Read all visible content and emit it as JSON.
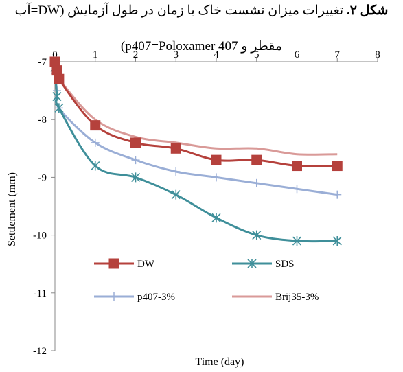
{
  "caption": {
    "label": "شکل ۲.",
    "line1": "تغییرات میزان نشست خاک با زمان در طول آزمایش (DW=آب",
    "line2": "مقطر و p407=Poloxamer 407)"
  },
  "chart_data": {
    "type": "line",
    "title": "",
    "xlabel": "Time (day)",
    "ylabel": "Settlement (mm)",
    "xlim": [
      0,
      8
    ],
    "ylim": [
      -12,
      -7
    ],
    "x_ticks": [
      "0",
      "1",
      "2",
      "3",
      "4",
      "5",
      "6",
      "7",
      "8"
    ],
    "y_ticks": [
      "-7",
      "-8",
      "-9",
      "-10",
      "-11",
      "-12"
    ],
    "grid": false,
    "legend_position": "inside-bottom",
    "series": [
      {
        "name": "DW",
        "color": "#b5413c",
        "marker": "square",
        "x": [
          0,
          0.05,
          0.1,
          1,
          2,
          3,
          4,
          5,
          6,
          7
        ],
        "y": [
          -7.0,
          -7.15,
          -7.3,
          -8.1,
          -8.4,
          -8.5,
          -8.7,
          -8.7,
          -8.8,
          -8.8
        ]
      },
      {
        "name": "SDS",
        "color": "#3f8f9a",
        "marker": "asterisk",
        "x": [
          0,
          0.05,
          0.1,
          1,
          2,
          3,
          4,
          5,
          6,
          7
        ],
        "y": [
          -7.1,
          -7.6,
          -7.8,
          -8.8,
          -9.0,
          -9.3,
          -9.7,
          -10.0,
          -10.1,
          -10.1
        ]
      },
      {
        "name": "p407-3%",
        "color": "#9aaed6",
        "marker": "plus",
        "x": [
          0,
          0.05,
          0.1,
          1,
          2,
          3,
          4,
          5,
          6,
          7
        ],
        "y": [
          -7.2,
          -7.5,
          -7.8,
          -8.4,
          -8.7,
          -8.9,
          -9.0,
          -9.1,
          -9.2,
          -9.3
        ]
      },
      {
        "name": "Brij35-3%",
        "color": "#d99a98",
        "marker": "none",
        "x": [
          0,
          0.05,
          0.1,
          1,
          2,
          3,
          4,
          5,
          6,
          7
        ],
        "y": [
          -7.0,
          -7.2,
          -7.3,
          -8.0,
          -8.3,
          -8.4,
          -8.5,
          -8.5,
          -8.6,
          -8.6
        ]
      }
    ]
  }
}
